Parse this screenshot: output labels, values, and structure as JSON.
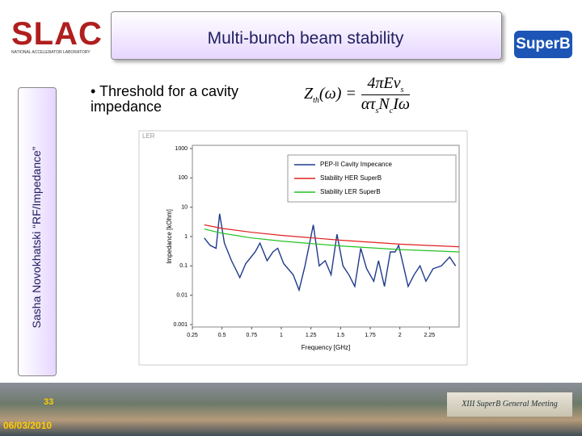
{
  "header": {
    "org": "SLAC",
    "org_sub": "NATIONAL ACCELERATOR LABORATORY",
    "title": "Multi-bunch beam stability",
    "logo": "SuperB"
  },
  "sidebar": "Sasha Novokhatski “RF/Impedance”",
  "bullet": "Threshold for a cavity impedance",
  "formula": {
    "lhs": "Z",
    "lhs_sub": "th",
    "lhs_rest": "(ω) =",
    "num": "4πEν",
    "num_sub": "s",
    "den_a": "ατ",
    "den_a_sub": "s",
    "den_b": "N",
    "den_b_sub": "c",
    "den_c": "Iω"
  },
  "chart_data": {
    "type": "line",
    "annotation": "LER",
    "xlabel": "Frequency [GHz]",
    "ylabel": "Impedance [kOhm]",
    "log_y": true,
    "legend": "upper right",
    "xlim": [
      0.25,
      2.5
    ],
    "xticks": [
      0.25,
      0.5,
      0.75,
      1,
      1.25,
      1.5,
      1.75,
      2,
      2.25
    ],
    "ylim": [
      0.001,
      1000
    ],
    "yticks": [
      1000,
      100,
      10,
      1,
      0.1,
      0.01,
      0.001
    ],
    "series": [
      {
        "name": "PEP-II Cavity Impecance",
        "color": "#1f3a8a",
        "x": [
          0.35,
          0.4,
          0.45,
          0.48,
          0.52,
          0.58,
          0.65,
          0.7,
          0.78,
          0.82,
          0.88,
          0.93,
          0.97,
          1.02,
          1.1,
          1.15,
          1.2,
          1.27,
          1.32,
          1.37,
          1.42,
          1.47,
          1.52,
          1.57,
          1.62,
          1.67,
          1.72,
          1.78,
          1.82,
          1.87,
          1.92,
          1.96,
          1.99,
          2.03,
          2.07,
          2.12,
          2.17,
          2.22,
          2.28,
          2.35,
          2.42,
          2.47
        ],
        "values": [
          0.9,
          0.5,
          0.4,
          6,
          0.6,
          0.15,
          0.04,
          0.12,
          0.3,
          0.6,
          0.15,
          0.3,
          0.4,
          0.12,
          0.05,
          0.015,
          0.1,
          2.5,
          0.1,
          0.15,
          0.05,
          1.2,
          0.1,
          0.05,
          0.02,
          0.4,
          0.08,
          0.03,
          0.15,
          0.02,
          0.3,
          0.3,
          0.5,
          0.1,
          0.02,
          0.05,
          0.1,
          0.03,
          0.08,
          0.1,
          0.2,
          0.1
        ]
      },
      {
        "name": "Stability HER SuperB",
        "color": "#e02020",
        "x": [
          0.35,
          0.5,
          0.75,
          1,
          1.5,
          2,
          2.5
        ],
        "values": [
          2.5,
          1.9,
          1.4,
          1.1,
          0.75,
          0.55,
          0.45
        ]
      },
      {
        "name": "Stability LER SuperB",
        "color": "#22c322",
        "x": [
          0.35,
          0.5,
          0.75,
          1,
          1.5,
          2,
          2.5
        ],
        "values": [
          1.8,
          1.3,
          0.9,
          0.7,
          0.48,
          0.36,
          0.3
        ]
      }
    ]
  },
  "footer": {
    "page": "33",
    "date": "06/03/2010",
    "banner": "XIII SuperB General Meeting"
  }
}
